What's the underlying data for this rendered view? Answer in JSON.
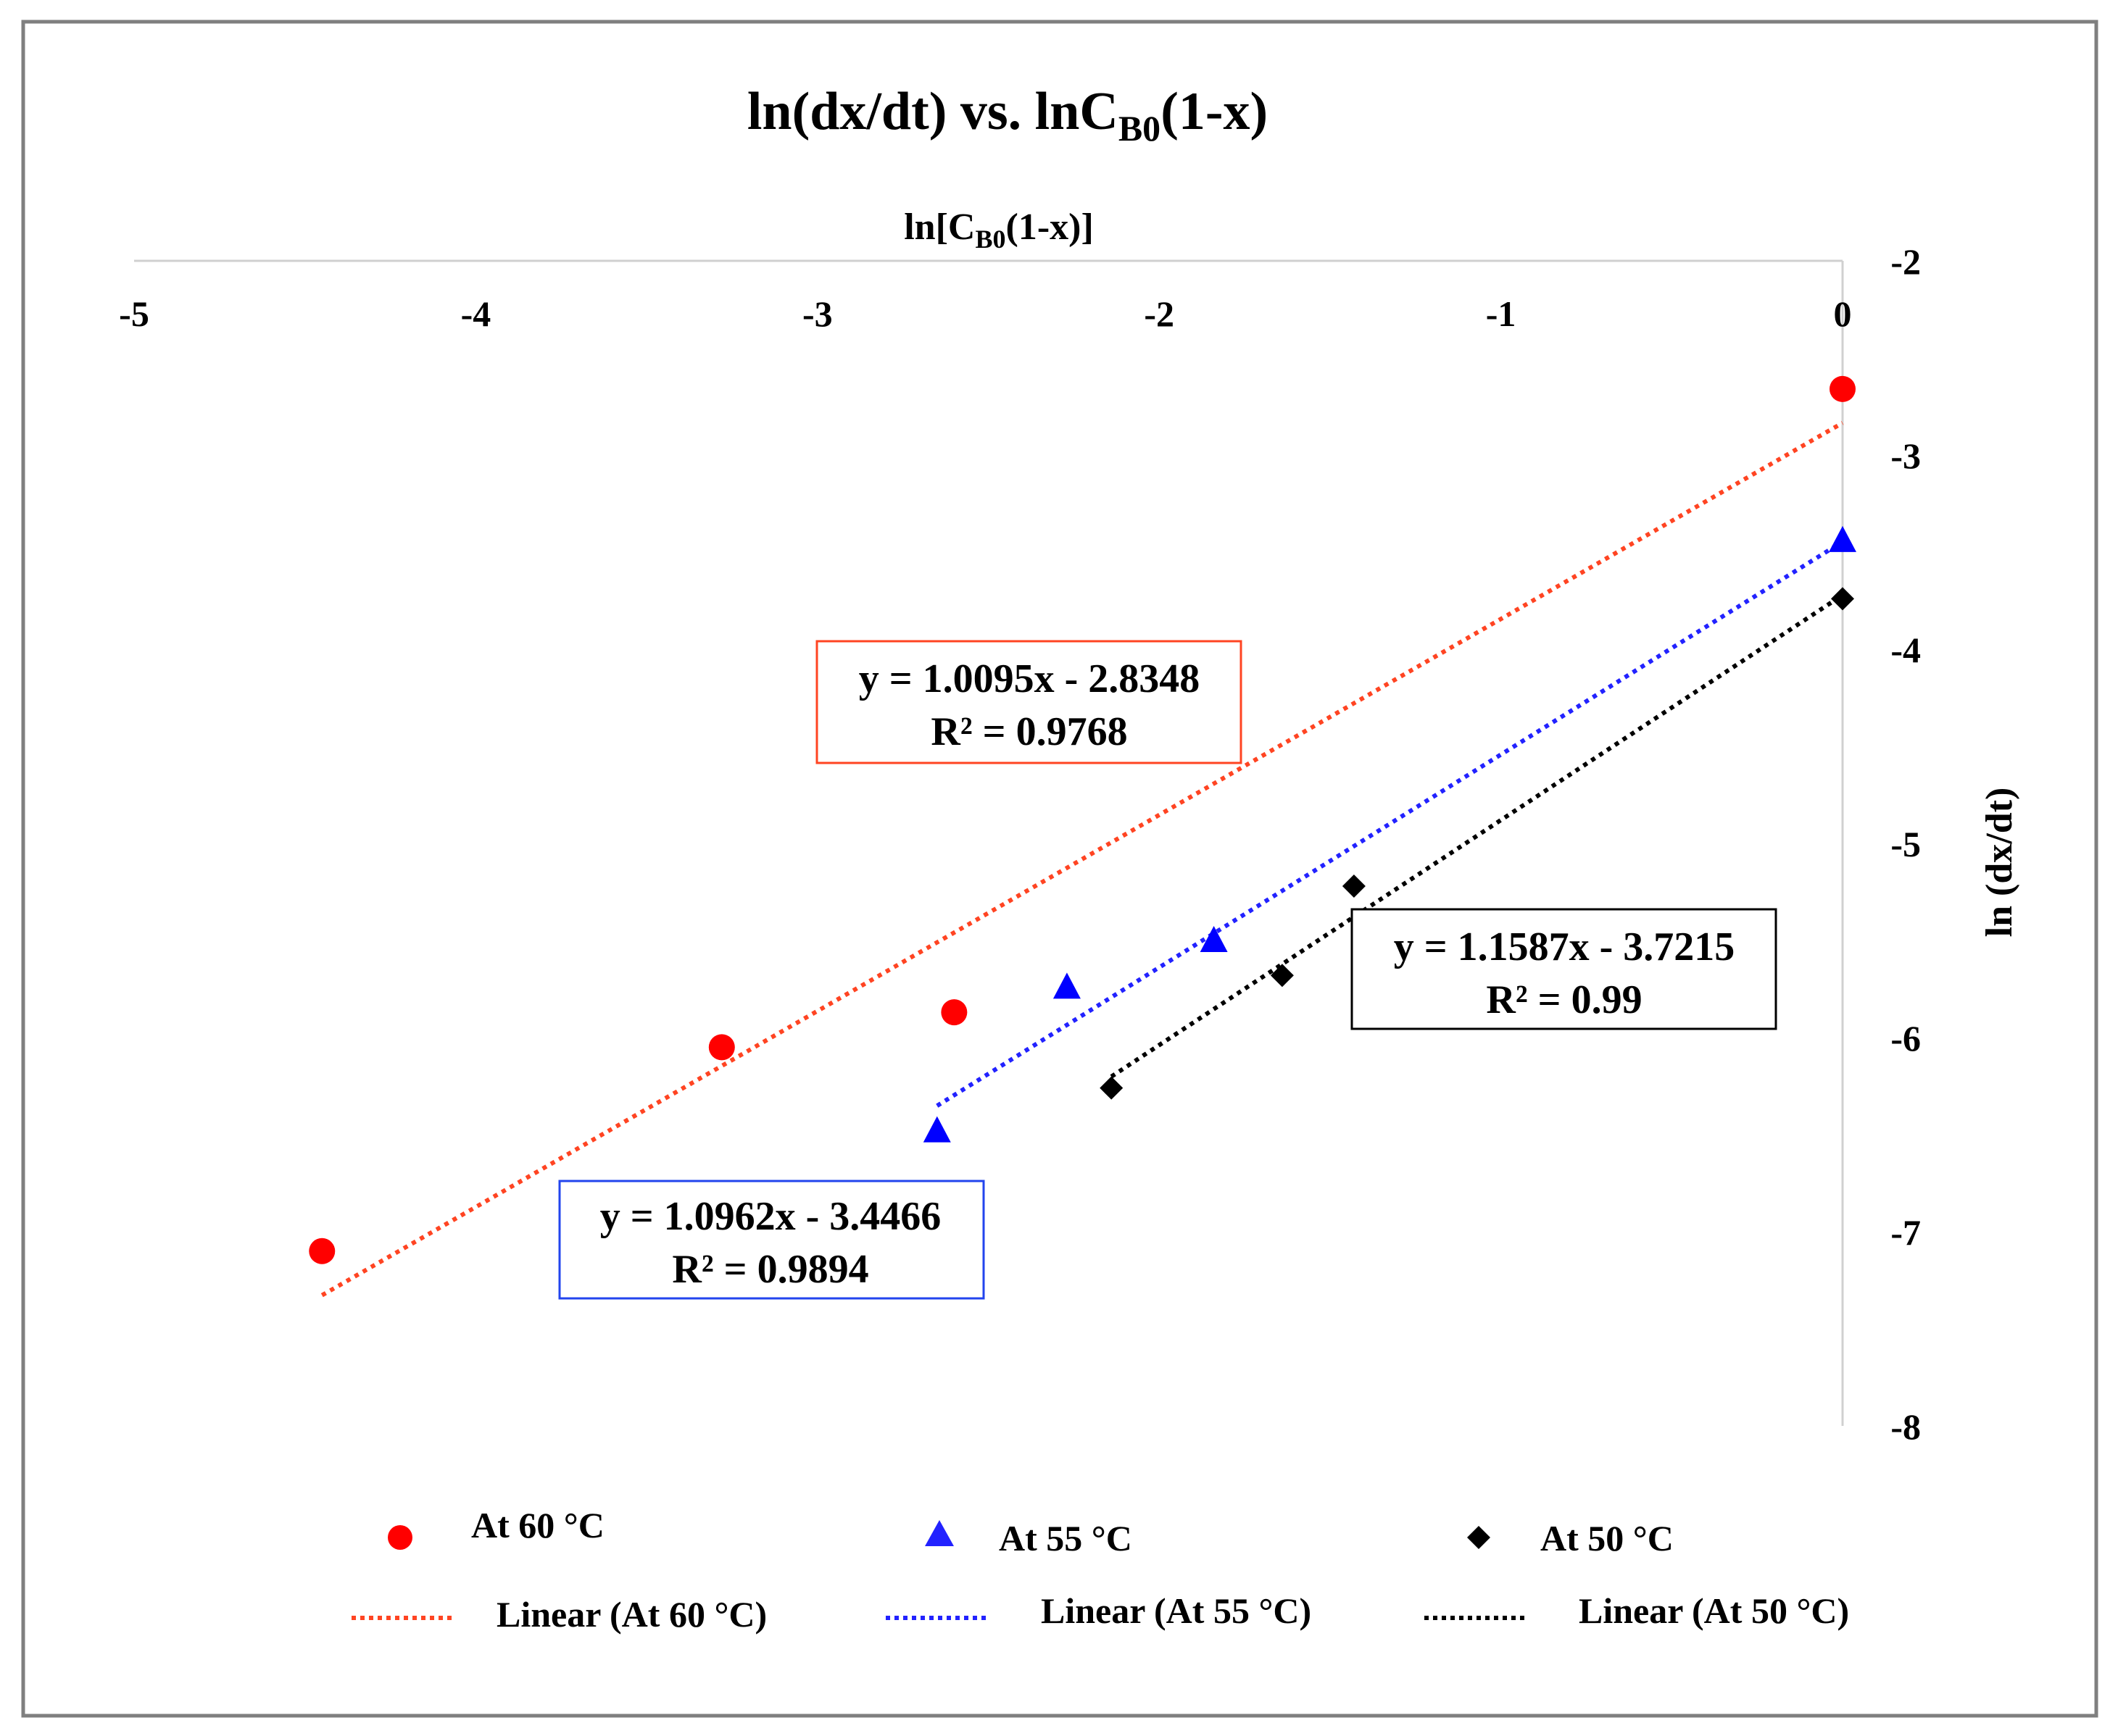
{
  "chart_data": {
    "type": "scatter",
    "title": "ln(dx/dt)  vs. lnC",
    "title_sub": "B0",
    "title_tail": "(1-x)",
    "x_axis": {
      "label": "ln[C",
      "label_sub": "B0",
      "label_tail": "(1-x)]",
      "range": [
        -5,
        0
      ],
      "ticks": [
        -5,
        -4,
        -3,
        -2,
        -1,
        0
      ],
      "tick_labels": [
        "-5",
        "-4",
        "-3",
        "-2",
        "-1",
        "0"
      ],
      "position": "top"
    },
    "y_axis": {
      "label": "ln (dx/dt)",
      "range": [
        -8,
        -2
      ],
      "ticks": [
        -2,
        -3,
        -4,
        -5,
        -6,
        -7,
        -8
      ],
      "tick_labels": [
        "-2",
        "-3",
        "-4",
        "-5",
        "-6",
        "-7",
        "-8"
      ],
      "position": "right"
    },
    "grid": false,
    "series": [
      {
        "name": "At 60 °C",
        "color": "#ff0000",
        "trend_color": "#ff4422",
        "marker": "circle",
        "x": [
          -4.45,
          -3.28,
          -2.6,
          0.0
        ],
        "y": [
          -7.1,
          -6.05,
          -5.87,
          -2.66
        ],
        "trendline": {
          "name": "Linear (At 60 °C)",
          "slope": 1.0095,
          "intercept": -2.8348,
          "x_range": [
            -4.45,
            0.0
          ],
          "equation": "y = 1.0095x - 2.8348",
          "r2": "R² = 0.9768",
          "box_color": "#ff4422"
        }
      },
      {
        "name": "At 55 °C",
        "color": "#0000ff",
        "trend_color": "#2222ff",
        "marker": "triangle",
        "x": [
          -2.65,
          -2.27,
          -1.84,
          0.0
        ],
        "y": [
          -6.48,
          -5.74,
          -5.5,
          -3.44
        ],
        "trendline": {
          "name": "Linear (At 55 °C)",
          "slope": 1.0962,
          "intercept": -3.4466,
          "x_range": [
            -2.65,
            0.0
          ],
          "equation": "y = 1.0962x - 3.4466",
          "r2": "R² = 0.9894",
          "box_color": "#2244ee"
        }
      },
      {
        "name": "At 50 °C",
        "color": "#000000",
        "trend_color": "#000000",
        "marker": "diamond",
        "x": [
          -2.14,
          -1.64,
          -1.43,
          0.0
        ],
        "y": [
          -6.26,
          -5.68,
          -5.22,
          -3.74
        ],
        "trendline": {
          "name": "Linear (At 50 °C)",
          "slope": 1.1587,
          "intercept": -3.7215,
          "x_range": [
            -2.14,
            0.0
          ],
          "equation": "y = 1.1587x - 3.7215",
          "r2": "R² = 0.99",
          "box_color": "#000000"
        }
      }
    ],
    "legend": {
      "placement": "bottom",
      "entries": [
        "At 60 °C",
        "At 55 °C",
        "At 50 °C",
        "Linear (At 60 °C)",
        "Linear (At 55 °C)",
        "Linear (At 50 °C)"
      ]
    }
  }
}
